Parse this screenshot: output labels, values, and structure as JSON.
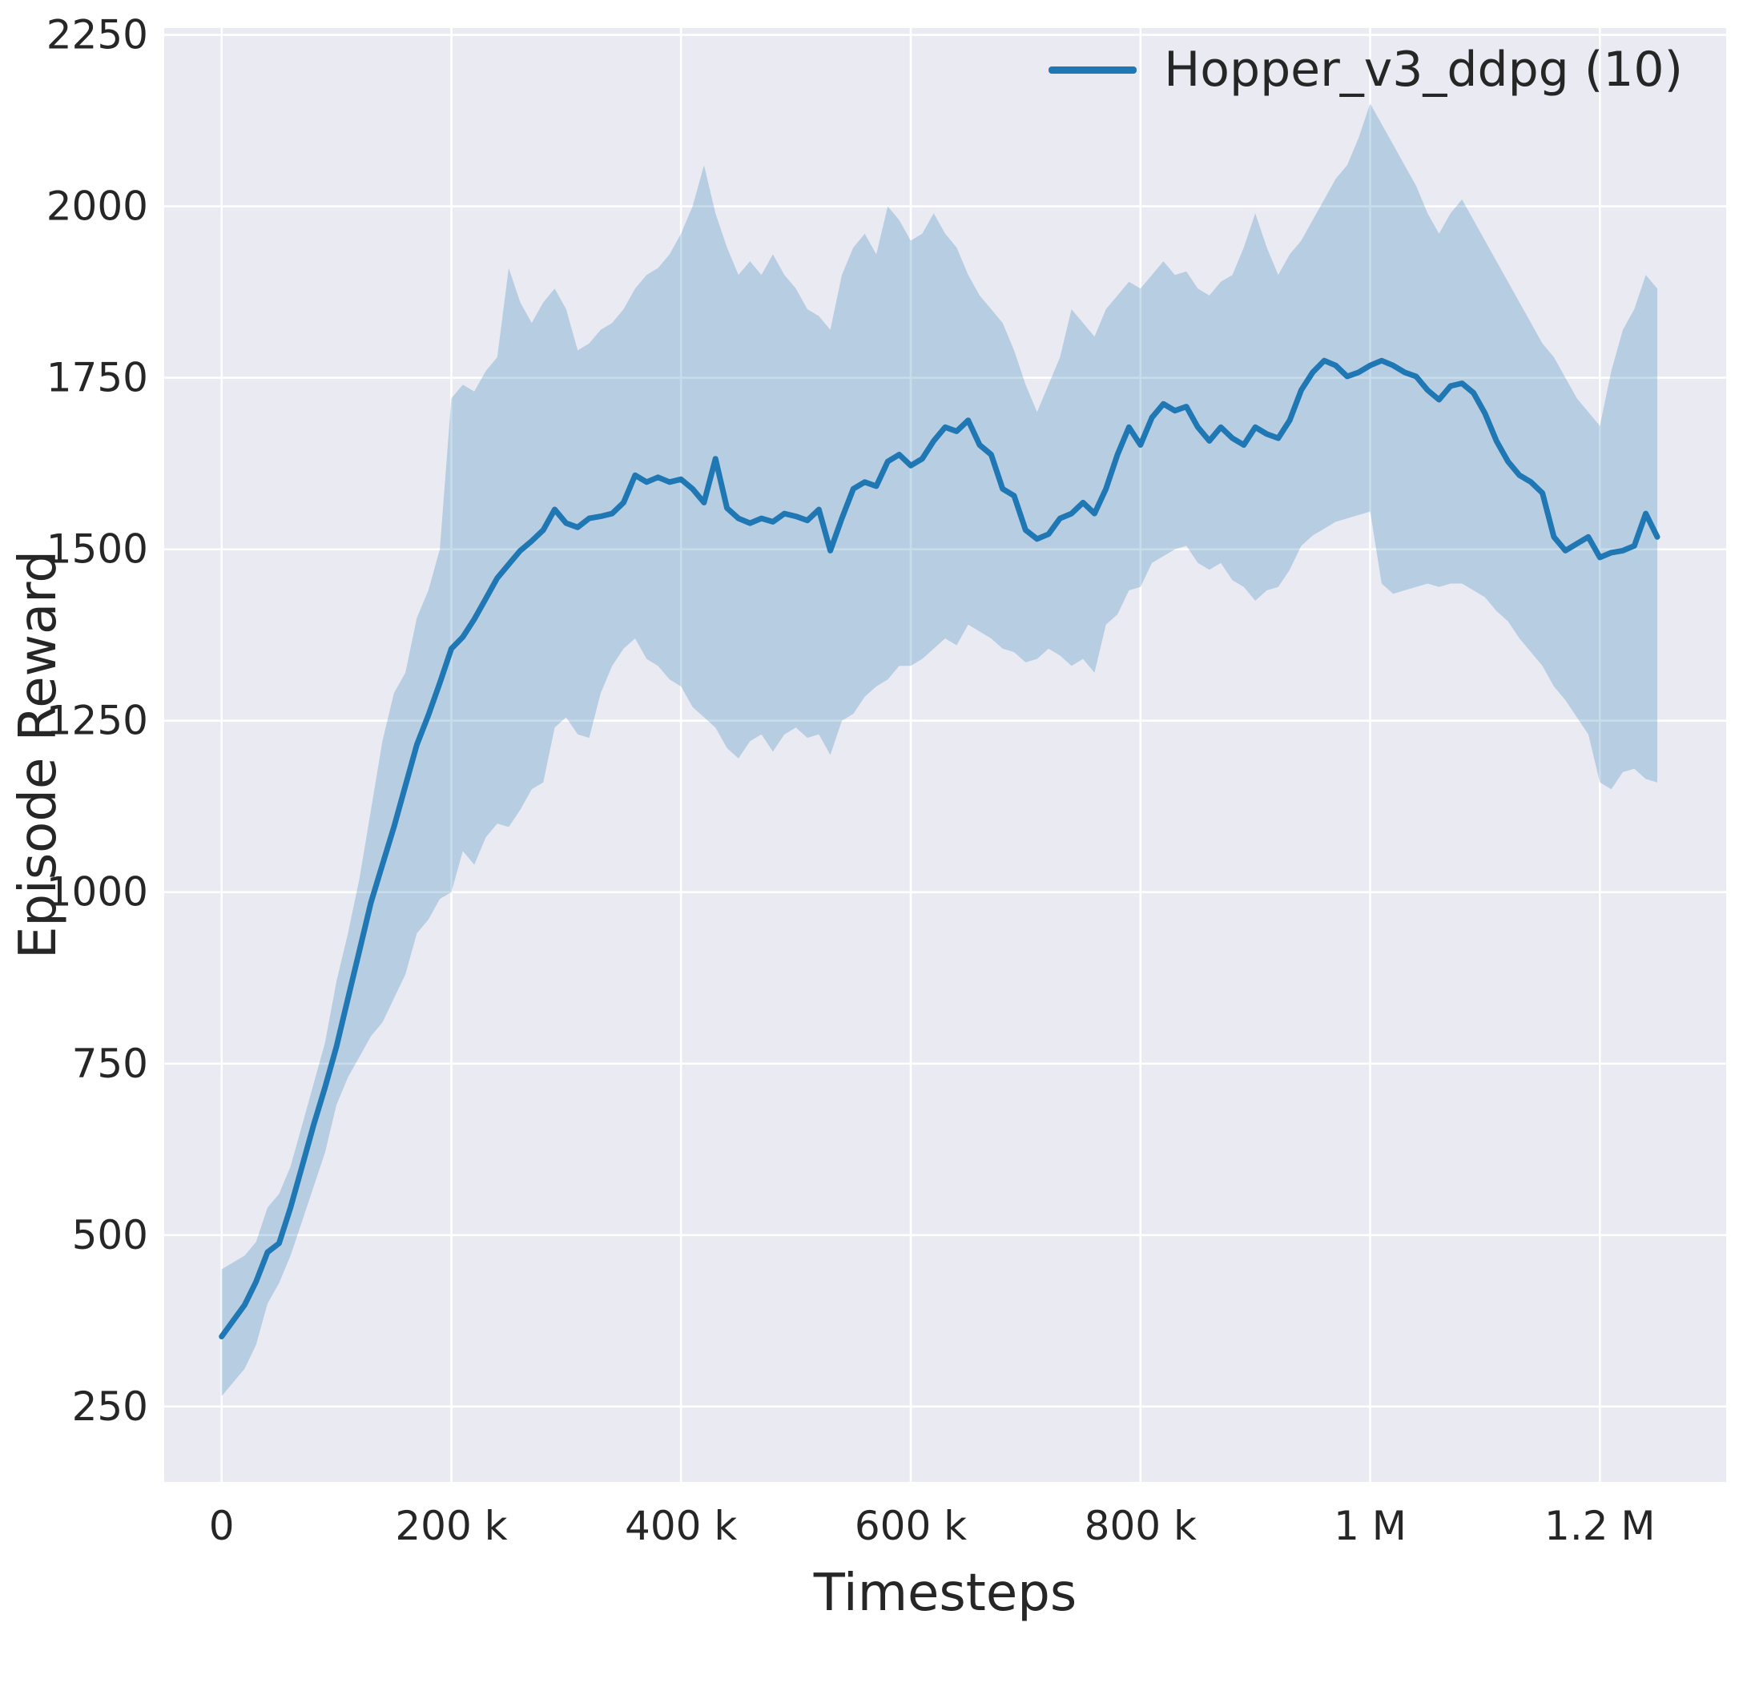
{
  "figure": {
    "background": "#ffffff"
  },
  "chart_data": {
    "type": "line",
    "title": "",
    "xlabel": "Timesteps",
    "ylabel": "Episode Reward",
    "grid": true,
    "axes_background": "#eaeaf2",
    "grid_color": "#ffffff",
    "text_color": "#262626",
    "legend": {
      "position": "upper right",
      "entries": [
        {
          "label": "Hopper_v3_ddpg (10)",
          "color": "#1f77b4"
        }
      ]
    },
    "x_unit": "timesteps, stored in thousands",
    "xlim": [
      -50,
      1310
    ],
    "ylim": [
      140,
      2260
    ],
    "x_ticks": {
      "values": [
        0,
        200,
        400,
        600,
        800,
        1000,
        1200
      ],
      "labels": [
        "0",
        "200 k",
        "400 k",
        "600 k",
        "800 k",
        "1 M",
        "1.2 M"
      ]
    },
    "y_ticks": {
      "values": [
        250,
        500,
        750,
        1000,
        1250,
        1500,
        1750,
        2000,
        2250
      ],
      "labels": [
        "250",
        "500",
        "750",
        "1000",
        "1250",
        "1500",
        "1750",
        "2000",
        "2250"
      ]
    },
    "series": [
      {
        "name": "Hopper_v3_ddpg (10)",
        "color": "#1f77b4",
        "band_alpha": 0.25,
        "x": [
          0,
          10,
          20,
          30,
          40,
          50,
          60,
          70,
          80,
          90,
          100,
          110,
          120,
          130,
          140,
          150,
          160,
          170,
          180,
          190,
          200,
          210,
          220,
          230,
          240,
          250,
          260,
          270,
          280,
          290,
          300,
          310,
          320,
          330,
          340,
          350,
          360,
          370,
          380,
          390,
          400,
          410,
          420,
          430,
          440,
          450,
          460,
          470,
          480,
          490,
          500,
          510,
          520,
          530,
          540,
          550,
          560,
          570,
          580,
          590,
          600,
          610,
          620,
          630,
          640,
          650,
          660,
          670,
          680,
          690,
          700,
          710,
          720,
          730,
          740,
          750,
          760,
          770,
          780,
          790,
          800,
          810,
          820,
          830,
          840,
          850,
          860,
          870,
          880,
          890,
          900,
          910,
          920,
          930,
          940,
          950,
          960,
          970,
          980,
          990,
          1000,
          1010,
          1020,
          1030,
          1040,
          1050,
          1060,
          1070,
          1080,
          1090,
          1100,
          1110,
          1120,
          1130,
          1140,
          1150,
          1160,
          1170,
          1180,
          1190,
          1200,
          1210,
          1220,
          1230,
          1240,
          1250
        ],
        "mean": [
          352,
          375,
          398,
          432,
          475,
          488,
          540,
          600,
          660,
          715,
          775,
          845,
          915,
          985,
          1040,
          1095,
          1155,
          1215,
          1258,
          1305,
          1355,
          1372,
          1398,
          1428,
          1458,
          1478,
          1498,
          1512,
          1528,
          1558,
          1538,
          1532,
          1545,
          1548,
          1552,
          1568,
          1608,
          1598,
          1605,
          1598,
          1602,
          1588,
          1568,
          1632,
          1560,
          1545,
          1538,
          1545,
          1540,
          1552,
          1548,
          1542,
          1558,
          1498,
          1545,
          1588,
          1598,
          1592,
          1628,
          1638,
          1622,
          1632,
          1658,
          1678,
          1672,
          1688,
          1652,
          1638,
          1588,
          1578,
          1528,
          1515,
          1522,
          1545,
          1552,
          1568,
          1552,
          1588,
          1638,
          1678,
          1652,
          1692,
          1712,
          1702,
          1708,
          1678,
          1658,
          1678,
          1662,
          1652,
          1678,
          1668,
          1662,
          1688,
          1732,
          1758,
          1775,
          1768,
          1752,
          1758,
          1768,
          1775,
          1768,
          1758,
          1752,
          1732,
          1718,
          1738,
          1742,
          1728,
          1698,
          1658,
          1628,
          1608,
          1598,
          1582,
          1518,
          1498,
          1508,
          1518,
          1488,
          1495,
          1498,
          1505,
          1552,
          1518
        ],
        "lower": [
          265,
          285,
          305,
          340,
          400,
          430,
          470,
          520,
          570,
          620,
          690,
          730,
          760,
          790,
          810,
          845,
          880,
          940,
          960,
          990,
          1000,
          1060,
          1040,
          1080,
          1100,
          1095,
          1120,
          1150,
          1160,
          1240,
          1255,
          1230,
          1225,
          1290,
          1330,
          1355,
          1370,
          1340,
          1330,
          1310,
          1300,
          1270,
          1255,
          1240,
          1210,
          1195,
          1220,
          1230,
          1205,
          1230,
          1240,
          1225,
          1230,
          1200,
          1250,
          1260,
          1285,
          1300,
          1310,
          1330,
          1330,
          1340,
          1355,
          1370,
          1360,
          1390,
          1380,
          1370,
          1355,
          1350,
          1335,
          1340,
          1355,
          1345,
          1330,
          1340,
          1320,
          1390,
          1405,
          1440,
          1445,
          1480,
          1490,
          1500,
          1505,
          1480,
          1470,
          1480,
          1455,
          1445,
          1425,
          1440,
          1445,
          1470,
          1505,
          1520,
          1530,
          1540,
          1545,
          1550,
          1555,
          1450,
          1435,
          1440,
          1445,
          1450,
          1445,
          1450,
          1450,
          1440,
          1430,
          1410,
          1395,
          1370,
          1350,
          1330,
          1300,
          1280,
          1255,
          1230,
          1160,
          1150,
          1175,
          1180,
          1165,
          1160
        ],
        "upper": [
          450,
          460,
          470,
          490,
          540,
          560,
          600,
          660,
          720,
          780,
          870,
          940,
          1020,
          1120,
          1220,
          1290,
          1320,
          1400,
          1440,
          1500,
          1720,
          1740,
          1730,
          1760,
          1780,
          1910,
          1860,
          1830,
          1860,
          1880,
          1850,
          1790,
          1800,
          1820,
          1830,
          1850,
          1880,
          1900,
          1910,
          1930,
          1960,
          2000,
          2060,
          1990,
          1940,
          1900,
          1920,
          1900,
          1930,
          1900,
          1880,
          1850,
          1840,
          1820,
          1900,
          1940,
          1960,
          1930,
          2000,
          1980,
          1950,
          1960,
          1990,
          1960,
          1940,
          1900,
          1870,
          1850,
          1830,
          1790,
          1740,
          1700,
          1740,
          1780,
          1850,
          1830,
          1810,
          1850,
          1870,
          1890,
          1880,
          1900,
          1920,
          1900,
          1905,
          1880,
          1870,
          1890,
          1900,
          1940,
          1990,
          1940,
          1900,
          1930,
          1950,
          1980,
          2010,
          2040,
          2060,
          2100,
          2150,
          2120,
          2090,
          2060,
          2030,
          1990,
          1960,
          1990,
          2010,
          1980,
          1950,
          1920,
          1890,
          1860,
          1830,
          1800,
          1780,
          1750,
          1720,
          1700,
          1680,
          1760,
          1820,
          1850,
          1900,
          1880
        ]
      }
    ]
  }
}
